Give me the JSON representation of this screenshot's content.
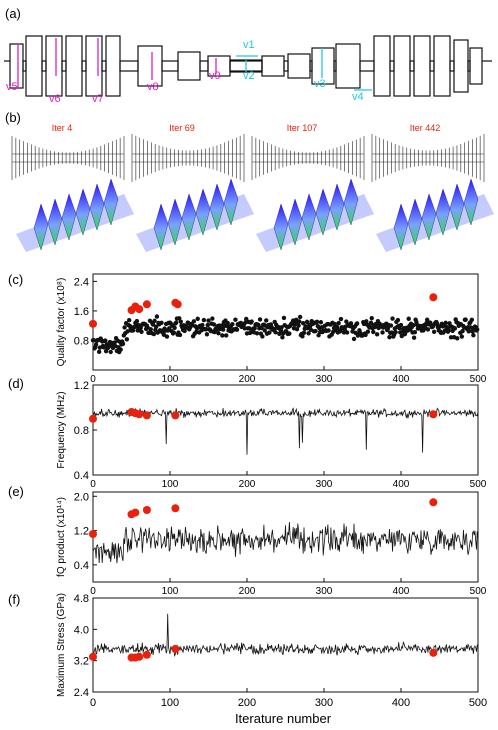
{
  "panel_labels": {
    "a": "(a)",
    "b": "(b)",
    "c": "(c)",
    "d": "(d)",
    "e": "(e)",
    "f": "(f)"
  },
  "design_vars": {
    "cyan": [
      "v1",
      "v2",
      "v3",
      "v4"
    ],
    "magenta": [
      "v5",
      "v6",
      "v7",
      "v8",
      "v9"
    ]
  },
  "iterations": [
    "Iter 4",
    "Iter 69",
    "Iter 107",
    "Iter 442"
  ],
  "colors": {
    "magenta": "#e020c0",
    "cyan": "#20c8e0",
    "highlight": "#e8200c",
    "iter_label": "#e8200c",
    "mode_top": "#3030e0",
    "mode_bottom": "#40e040"
  },
  "x_axis": {
    "label": "Iterature number",
    "ticks": [
      "0",
      "100",
      "200",
      "300",
      "400",
      "500"
    ]
  },
  "chart_data": [
    {
      "type": "scatter",
      "panel": "(c)",
      "ylabel": "Quality factor (x10⁸)",
      "xlim": [
        0,
        500
      ],
      "ylim": [
        0,
        2.6
      ],
      "yticks": [
        "0.8",
        "1.6",
        "2.4"
      ],
      "series": [
        {
          "values": "random scatter of black dots, 500 iterations, mostly 0.3-1.8"
        },
        {
          "x": [
            0,
            50,
            55,
            60,
            70,
            107,
            110,
            442
          ],
          "y": [
            1.25,
            1.62,
            1.72,
            1.65,
            1.78,
            1.82,
            1.78,
            1.97
          ]
        }
      ]
    },
    {
      "type": "line",
      "panel": "(d)",
      "ylabel": "Frequency (MHz)",
      "xlim": [
        0,
        500
      ],
      "ylim": [
        0.4,
        1.2
      ],
      "yticks": [
        "0.4",
        "0.8",
        "1.2"
      ],
      "series": [
        {
          "values": "noisy line around 0.95 with downward spikes"
        },
        {
          "x": [
            0,
            50,
            55,
            60,
            70,
            107,
            442
          ],
          "y": [
            0.9,
            0.96,
            0.95,
            0.94,
            0.93,
            0.93,
            0.94
          ]
        }
      ]
    },
    {
      "type": "line",
      "panel": "(e)",
      "ylabel": "fQ product (x10¹⁴)",
      "xlim": [
        0,
        500
      ],
      "ylim": [
        0,
        2.1
      ],
      "yticks": [
        "0.4",
        "1.2",
        "2.0"
      ],
      "series": [
        {
          "values": "noisy line, 0.2-1.7"
        },
        {
          "x": [
            0,
            50,
            55,
            70,
            107,
            442
          ],
          "y": [
            1.12,
            1.58,
            1.62,
            1.68,
            1.72,
            1.86
          ]
        }
      ]
    },
    {
      "type": "line",
      "panel": "(f)",
      "ylabel": "Maximum Stress (GPa)",
      "xlim": [
        0,
        500
      ],
      "ylim": [
        2.4,
        4.8
      ],
      "yticks": [
        "2.4",
        "3.2",
        "4.0",
        "4.8"
      ],
      "series": [
        {
          "values": "noisy line around 3.5, 3.0-4.4"
        },
        {
          "x": [
            0,
            50,
            55,
            60,
            70,
            107,
            442
          ],
          "y": [
            3.3,
            3.28,
            3.28,
            3.3,
            3.35,
            3.5,
            3.4
          ]
        }
      ]
    }
  ]
}
